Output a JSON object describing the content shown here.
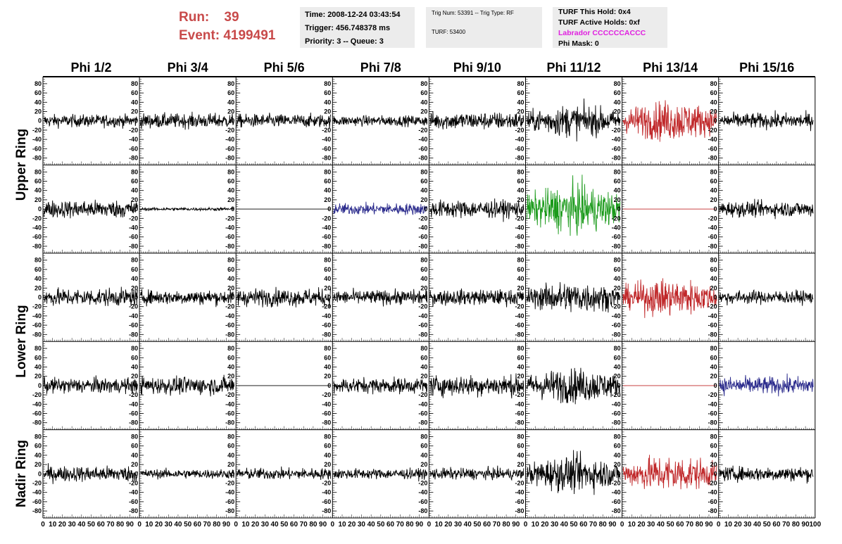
{
  "header": {
    "run_label": "Run:",
    "run_value": "39",
    "event_label": "Event:",
    "event_value": "4199491",
    "time": "Time: 2008-12-24 03:43:54",
    "trigger": "Trigger: 456.748378 ms",
    "priority": "Priority: 3 -- Queue: 3",
    "trig_num": "Trig Num: 53391 -- Trig Type: RF",
    "turf": "TURF: 53400",
    "turf_hold": "TURF This Hold: 0x4",
    "turf_active": "TURF Active Holds: 0xf",
    "labrador": "Labrador CCCCCCACCC",
    "phi_mask": "Phi Mask: 0"
  },
  "colors": {
    "run_text": "#c84a4a",
    "labrador_text": "#e020e0",
    "trace_default": "#000000",
    "trace_red": "#c0282a",
    "trace_blue": "#2a2a8c",
    "trace_green": "#1a9a1a"
  },
  "chart_data": {
    "type": "line",
    "columns": [
      "Phi 1/2",
      "Phi 3/4",
      "Phi 5/6",
      "Phi 7/8",
      "Phi 9/10",
      "Phi 11/12",
      "Phi 13/14",
      "Phi 15/16"
    ],
    "ring_labels": [
      {
        "text": "Upper Ring",
        "rows": [
          0,
          1
        ]
      },
      {
        "text": "Lower Ring",
        "rows": [
          2,
          3
        ]
      },
      {
        "text": "Nadir Ring",
        "rows": [
          4,
          4
        ]
      }
    ],
    "xlim": [
      0,
      100
    ],
    "ylim": [
      -95,
      95
    ],
    "x_ticks": [
      "0",
      "10",
      "20",
      "30",
      "40",
      "50",
      "60",
      "70",
      "80",
      "90",
      "100"
    ],
    "y_ticks": [
      "80",
      "60",
      "40",
      "20",
      "0",
      "-20",
      "-40",
      "-60",
      "-80"
    ],
    "rows": [
      [
        {
          "amp": 12,
          "color": "trace_default"
        },
        {
          "amp": 14,
          "color": "trace_default"
        },
        {
          "amp": 13,
          "color": "trace_default"
        },
        {
          "amp": 10,
          "color": "trace_default"
        },
        {
          "amp": 17,
          "color": "trace_default"
        },
        {
          "amp": 24,
          "color": "trace_default"
        },
        {
          "amp": 30,
          "color": "trace_red"
        },
        {
          "amp": 15,
          "color": "trace_default"
        }
      ],
      [
        {
          "amp": 17,
          "color": "trace_default"
        },
        {
          "amp": 3,
          "color": "trace_default"
        },
        {
          "amp": 0,
          "color": "trace_default"
        },
        {
          "amp": 11,
          "color": "trace_blue"
        },
        {
          "amp": 17,
          "color": "trace_default"
        },
        {
          "amp": 36,
          "color": "trace_green"
        },
        {
          "amp": 0,
          "color": "trace_red"
        },
        {
          "amp": 15,
          "color": "trace_default"
        }
      ],
      [
        {
          "amp": 17,
          "color": "trace_default"
        },
        {
          "amp": 14,
          "color": "trace_default"
        },
        {
          "amp": 17,
          "color": "trace_default"
        },
        {
          "amp": 14,
          "color": "trace_default"
        },
        {
          "amp": 15,
          "color": "trace_default"
        },
        {
          "amp": 24,
          "color": "trace_default"
        },
        {
          "amp": 28,
          "color": "trace_red"
        },
        {
          "amp": 13,
          "color": "trace_default"
        }
      ],
      [
        {
          "amp": 15,
          "color": "trace_default"
        },
        {
          "amp": 17,
          "color": "trace_default"
        },
        {
          "amp": 0,
          "color": "trace_default"
        },
        {
          "amp": 15,
          "color": "trace_default"
        },
        {
          "amp": 20,
          "color": "trace_default"
        },
        {
          "amp": 26,
          "color": "trace_default"
        },
        {
          "amp": 0,
          "color": "trace_red"
        },
        {
          "amp": 17,
          "color": "trace_blue"
        }
      ],
      [
        {
          "amp": 15,
          "color": "trace_default"
        },
        {
          "amp": 9,
          "color": "trace_default"
        },
        {
          "amp": 11,
          "color": "trace_default"
        },
        {
          "amp": 10,
          "color": "trace_default"
        },
        {
          "amp": 11,
          "color": "trace_default"
        },
        {
          "amp": 27,
          "color": "trace_default"
        },
        {
          "amp": 28,
          "color": "trace_red"
        },
        {
          "amp": 14,
          "color": "trace_default"
        }
      ]
    ]
  }
}
